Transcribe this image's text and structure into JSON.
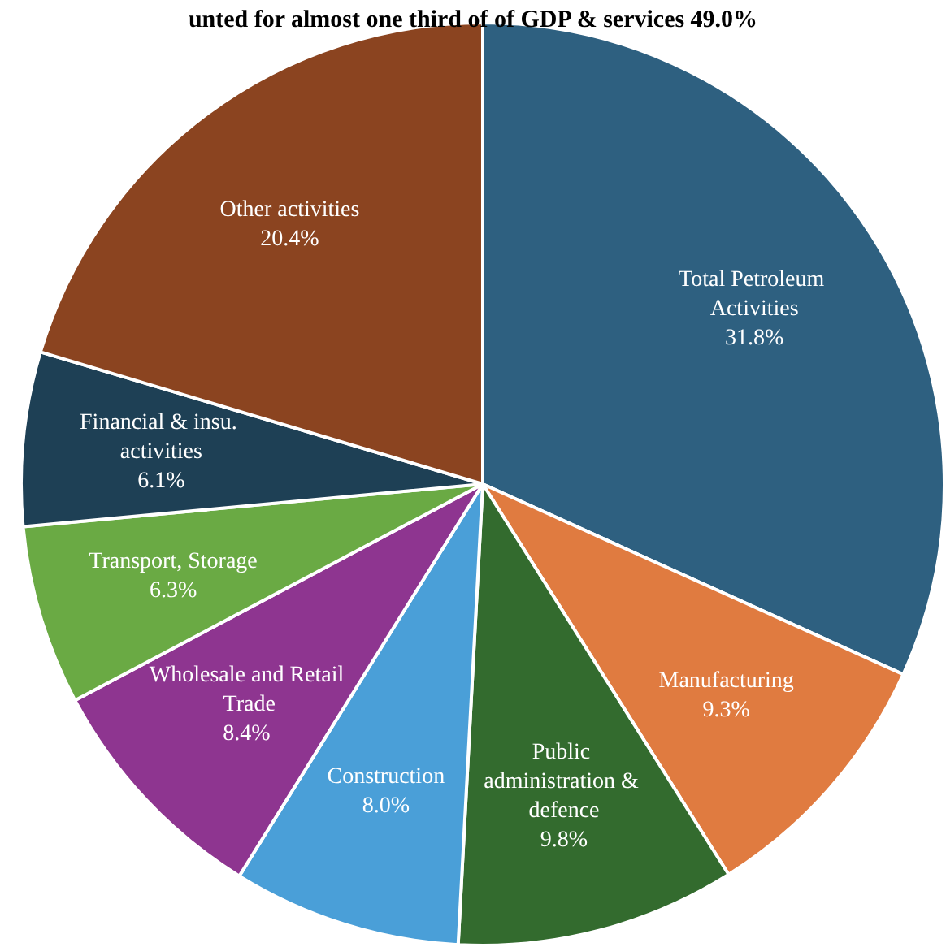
{
  "chart_data": {
    "type": "pie",
    "title": "unted for almost one third of of GDP & services 49.0%",
    "categories": [
      "Total Petroleum Activities",
      "Manufacturing",
      "Public administration & defence",
      "Construction",
      "Wholesale and Retail Trade",
      "Transport, Storage",
      "Financial & insu. activities",
      "Other activities"
    ],
    "values": [
      31.8,
      9.3,
      9.8,
      8.0,
      8.4,
      6.3,
      6.1,
      20.4
    ],
    "value_labels": [
      "31.8%",
      "9.3%",
      "9.8%",
      "8.0%",
      "8.4%",
      "6.3%",
      "6.1%",
      "20.4%"
    ],
    "colors": [
      "#2e6080",
      "#e07b40",
      "#336b2e",
      "#4a9fd8",
      "#8e3590",
      "#6aaa44",
      "#1e4055",
      "#8b4420"
    ]
  }
}
